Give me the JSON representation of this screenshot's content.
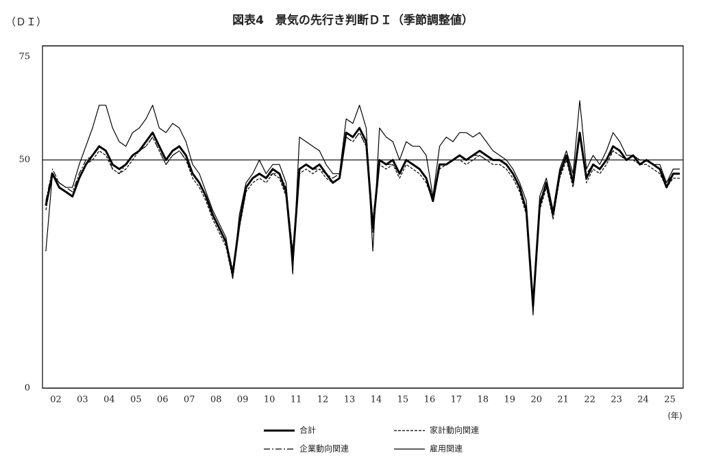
{
  "chart_data": {
    "type": "line",
    "title": "図表4　景気の先行き判断ＤＩ（季節調整値）",
    "y_label": "（ＤＩ）",
    "x_unit": "(年)",
    "categories": [
      "02",
      null,
      null,
      null,
      "03",
      null,
      null,
      null,
      "04",
      null,
      null,
      null,
      "05",
      null,
      null,
      null,
      "06",
      null,
      null,
      null,
      "07",
      null,
      null,
      null,
      "08",
      null,
      null,
      null,
      "09",
      null,
      null,
      null,
      "10",
      null,
      null,
      null,
      "11",
      null,
      null,
      null,
      "12",
      null,
      null,
      null,
      "13",
      null,
      null,
      null,
      "14",
      null,
      null,
      null,
      "15",
      null,
      null,
      null,
      "16",
      null,
      null,
      null,
      "17",
      null,
      null,
      null,
      "18",
      null,
      null,
      null,
      "19",
      null,
      null,
      null,
      "20",
      null,
      null,
      null,
      "21",
      null,
      null,
      null,
      "22",
      null,
      null,
      null,
      "23",
      null,
      null,
      null,
      "24",
      null,
      null,
      null,
      "25",
      null,
      null,
      null
    ],
    "series": [
      {
        "name": "合計",
        "color": "#000000",
        "width": 3,
        "line_style": "solid",
        "values": [
          40,
          47,
          44,
          43,
          42,
          46,
          49,
          51,
          53,
          52,
          49,
          48,
          49,
          51,
          52,
          54,
          56,
          53,
          50,
          52,
          53,
          51,
          47,
          45,
          42,
          38,
          35,
          32,
          25,
          36,
          44,
          46,
          47,
          46,
          48,
          47,
          43,
          28,
          48,
          49,
          48,
          49,
          47,
          45,
          46,
          56,
          55,
          57,
          54,
          35,
          50,
          49,
          50,
          47,
          50,
          49,
          48,
          46,
          41,
          49,
          49,
          50,
          51,
          50,
          51,
          52,
          51,
          50,
          50,
          49,
          47,
          44,
          39,
          18,
          40,
          45,
          38,
          47,
          51,
          45,
          56,
          46,
          49,
          48,
          50,
          53,
          52,
          50,
          51,
          49,
          50,
          49,
          48,
          44,
          47,
          47
        ]
      },
      {
        "name": "家計動向関連",
        "color": "#000000",
        "width": 1.2,
        "line_style": "dashed",
        "values": [
          39,
          47,
          44,
          43,
          42,
          46,
          49,
          50,
          52,
          51,
          48,
          47,
          48,
          50,
          52,
          53,
          55,
          52,
          49,
          51,
          52,
          50,
          46,
          44,
          41,
          37,
          34,
          31,
          24,
          35,
          43,
          45,
          46,
          45,
          47,
          46,
          42,
          27,
          47,
          48,
          47,
          48,
          46,
          45,
          46,
          55,
          54,
          56,
          53,
          34,
          49,
          48,
          49,
          46,
          49,
          48,
          47,
          45,
          41,
          48,
          49,
          50,
          50,
          49,
          50,
          51,
          50,
          49,
          49,
          48,
          46,
          43,
          38,
          17,
          39,
          44,
          37,
          46,
          50,
          44,
          55,
          45,
          48,
          47,
          49,
          52,
          51,
          50,
          50,
          49,
          49,
          48,
          47,
          44,
          46,
          46
        ]
      },
      {
        "name": "企業動向関連",
        "color": "#000000",
        "width": 1.2,
        "line_style": "dashdot",
        "values": [
          41,
          48,
          45,
          44,
          43,
          47,
          50,
          51,
          53,
          52,
          48,
          47,
          49,
          51,
          52,
          53,
          55,
          52,
          49,
          51,
          52,
          50,
          47,
          45,
          42,
          38,
          35,
          32,
          26,
          36,
          44,
          46,
          47,
          46,
          47,
          47,
          44,
          30,
          48,
          49,
          48,
          48,
          47,
          46,
          47,
          55,
          54,
          56,
          53,
          37,
          50,
          49,
          49,
          47,
          50,
          49,
          48,
          46,
          42,
          49,
          49,
          50,
          51,
          50,
          51,
          51,
          50,
          50,
          50,
          49,
          47,
          44,
          39,
          19,
          41,
          45,
          39,
          47,
          51,
          46,
          55,
          47,
          49,
          48,
          50,
          52,
          51,
          50,
          51,
          49,
          50,
          49,
          48,
          45,
          47,
          47
        ]
      },
      {
        "name": "雇用関連",
        "color": "#000000",
        "width": 1.2,
        "line_style": "solid",
        "values": [
          30,
          47,
          45,
          44,
          44,
          49,
          53,
          57,
          62,
          62,
          57,
          54,
          53,
          56,
          57,
          59,
          62,
          57,
          56,
          58,
          57,
          54,
          49,
          47,
          43,
          39,
          36,
          33,
          24,
          38,
          45,
          47,
          50,
          47,
          49,
          49,
          45,
          25,
          55,
          54,
          53,
          52,
          49,
          47,
          47,
          59,
          58,
          62,
          57,
          30,
          57,
          55,
          54,
          50,
          54,
          53,
          53,
          51,
          42,
          53,
          55,
          54,
          56,
          56,
          55,
          56,
          54,
          52,
          51,
          50,
          48,
          45,
          41,
          16,
          42,
          46,
          39,
          48,
          52,
          47,
          63,
          48,
          51,
          49,
          52,
          56,
          54,
          51,
          51,
          50,
          50,
          49,
          49,
          45,
          48,
          48
        ]
      }
    ],
    "ylim": [
      0,
      75
    ],
    "yticks": [
      0,
      50,
      75
    ],
    "grid": true
  }
}
